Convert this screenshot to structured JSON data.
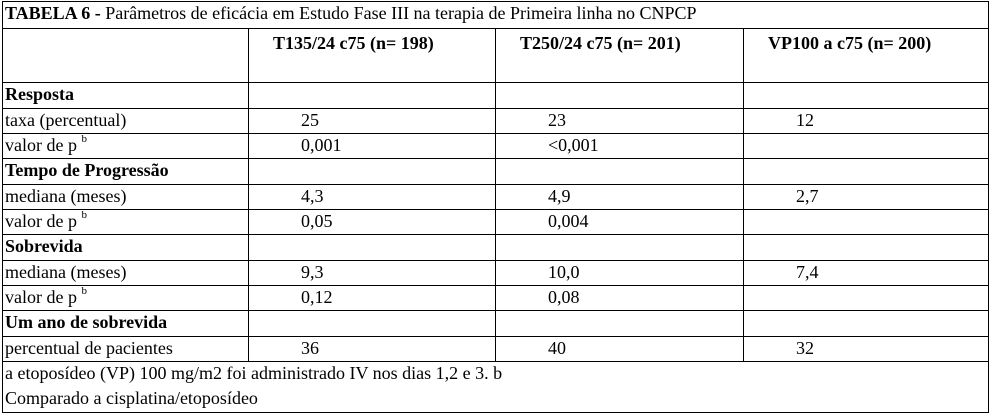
{
  "title": {
    "label": "TABELA 6 -",
    "text": "Parâmetros de eficácia em Estudo Fase III na terapia de Primeira linha no CNPCP"
  },
  "columns": [
    "T135/24 c75 (n= 198)",
    "T250/24 c75 (n= 201)",
    "VP100 a c75 (n= 200)"
  ],
  "sections": [
    {
      "title": "Resposta",
      "rows": [
        {
          "label": "taxa (percentual)",
          "values": [
            "25",
            "23",
            "12"
          ]
        },
        {
          "label": "valor de p",
          "sup": "b",
          "values": [
            "0,001",
            "<0,001",
            null
          ]
        }
      ]
    },
    {
      "title": "Tempo de Progressão",
      "rows": [
        {
          "label": "mediana (meses)",
          "values": [
            "4,3",
            "4,9",
            "2,7"
          ]
        },
        {
          "label": "valor de p",
          "sup": "b",
          "values": [
            "0,05",
            "0,004",
            null
          ]
        }
      ]
    },
    {
      "title": "Sobrevida",
      "rows": [
        {
          "label": "mediana (meses)",
          "values": [
            "9,3",
            "10,0",
            "7,4"
          ]
        },
        {
          "label": "valor de p",
          "sup": "b",
          "values": [
            "0,12",
            "0,08",
            null
          ]
        }
      ]
    },
    {
      "title": "Um ano de sobrevida",
      "rows": [
        {
          "label": "percentual de pacientes",
          "values": [
            "36",
            "40",
            "32"
          ]
        }
      ]
    }
  ],
  "footnotes": [
    "a etoposídeo (VP) 100 mg/m2 foi administrado IV nos dias 1,2 e 3. b",
    "Comparado a cisplatina/etoposídeo"
  ]
}
